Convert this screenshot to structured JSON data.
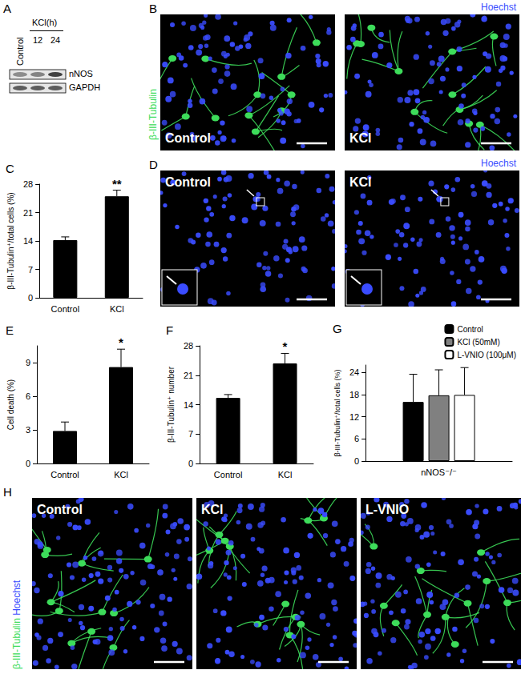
{
  "blot": {
    "panel": "A",
    "control": "Control",
    "treatment": "KCl(h)",
    "times": [
      "12",
      "24"
    ],
    "bands": [
      "nNOS",
      "GAPDH"
    ]
  },
  "images": [
    {
      "panel": "B",
      "stains": [
        {
          "name": "β-III-Tubulin",
          "color": "#3ddc5a"
        },
        {
          "name": "Hoechst",
          "color": "#3a4cff"
        }
      ],
      "conditions": [
        "Control",
        "KCl"
      ]
    },
    {
      "panel": "D",
      "stains": [
        {
          "name": "Hoechst",
          "color": "#3a4cff"
        }
      ],
      "conditions": [
        "Control",
        "KCl"
      ]
    },
    {
      "panel": "H",
      "stains": [
        {
          "name": "β-III-Tubulin",
          "color": "#3ddc5a"
        },
        {
          "name": "Hoechst",
          "color": "#3a4cff"
        }
      ],
      "conditions": [
        "Control",
        "KCl",
        "L-VNIO"
      ]
    }
  ],
  "chart_data": [
    {
      "type": "bar",
      "title": "C",
      "ylabel": "β-III-Tubulin⁺/total cells (%)",
      "categories": [
        "Control",
        "KCl"
      ],
      "values": [
        14.2,
        25.0
      ],
      "errors": [
        0.8,
        1.5
      ],
      "annotations": [
        null,
        "**"
      ],
      "color": "#000000",
      "ylim": [
        0,
        28
      ],
      "yticks": [
        0,
        7,
        14,
        21,
        28
      ],
      "grid": false
    },
    {
      "type": "bar",
      "title": "E",
      "ylabel": "Cell death (%)",
      "categories": [
        "Control",
        "KCl"
      ],
      "values": [
        2.9,
        8.6
      ],
      "errors": [
        0.8,
        1.6
      ],
      "annotations": [
        null,
        "*"
      ],
      "color": "#000000",
      "ylim": [
        0,
        10.5
      ],
      "yticks": [
        0,
        3,
        6,
        9
      ],
      "grid": false
    },
    {
      "type": "bar",
      "title": "F",
      "ylabel": "β-III-Tubulin⁺ number",
      "categories": [
        "Control",
        "KCl"
      ],
      "values": [
        15.6,
        23.8
      ],
      "errors": [
        0.8,
        2.4
      ],
      "annotations": [
        null,
        "*"
      ],
      "color": "#000000",
      "ylim": [
        0,
        28
      ],
      "yticks": [
        0,
        7,
        14,
        21,
        28
      ],
      "grid": false
    },
    {
      "type": "bar",
      "title": "G",
      "ylabel": "β-III-Tubulin⁺/total cells (%)",
      "categories": [
        "nNOS⁻/⁻"
      ],
      "series": [
        {
          "name": "Control",
          "color": "#000000",
          "values": [
            16.0
          ],
          "errors": [
            7.5
          ]
        },
        {
          "name": "KCl (50mM)",
          "color": "#808080",
          "values": [
            17.8
          ],
          "errors": [
            6.9
          ]
        },
        {
          "name": "L-VNIO (100μM)",
          "color": "#ffffff",
          "values": [
            17.9
          ],
          "errors": [
            7.4
          ]
        }
      ],
      "legend": "top-right",
      "ylim": [
        0,
        26
      ],
      "yticks": [
        0,
        6,
        12,
        18,
        24
      ],
      "grid": false
    }
  ]
}
